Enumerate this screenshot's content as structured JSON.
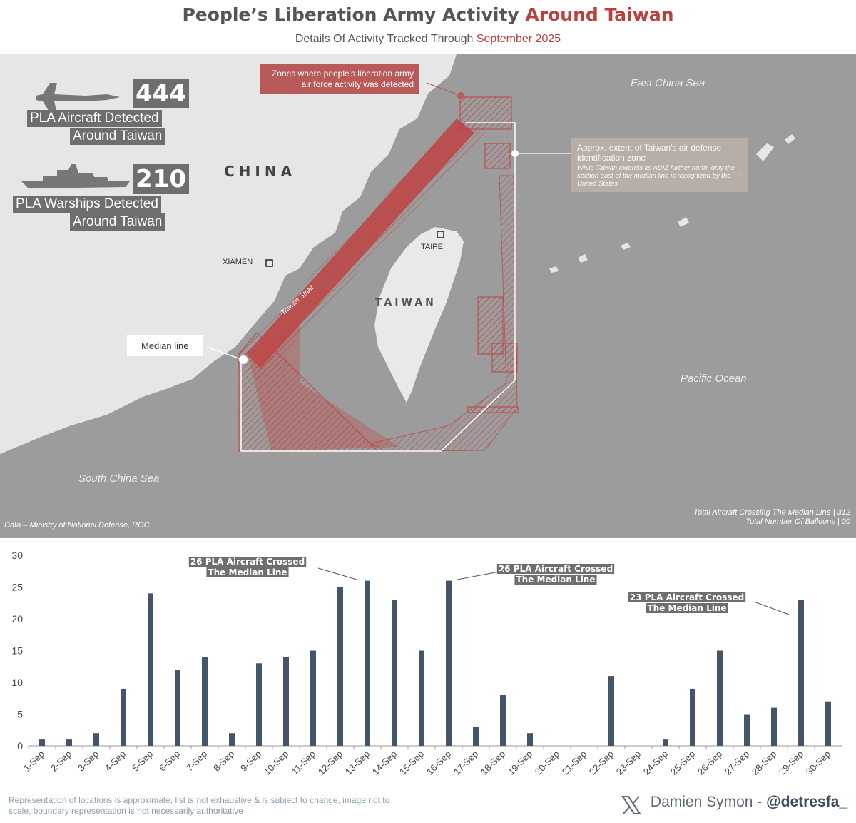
{
  "header": {
    "title_main": "People’s Liberation Army Activity ",
    "title_accent": "Around Taiwan",
    "subtitle_main": "Details Of Activity Tracked Through ",
    "subtitle_accent": "September 2025"
  },
  "map": {
    "stats": {
      "aircraft_count": "444",
      "aircraft_label_1": "PLA Aircraft Detected",
      "aircraft_label_2": "Around Taiwan",
      "warship_count": "210",
      "warship_label_1": "PLA Warships Detected",
      "warship_label_2": "Around Taiwan"
    },
    "labels": {
      "china": "CHINA",
      "taiwan": "TAIWAN",
      "taipei": "TAIPEI",
      "xiamen": "XIAMEN",
      "strait": "Taiwan Strait",
      "east_china_sea": "East China Sea",
      "pacific_ocean": "Pacific Ocean",
      "south_china_sea": "South China Sea"
    },
    "callouts": {
      "zones": "Zones where people's liberation army air force activity was detected",
      "adiz_title": "Approx. extent of Taiwan's air defense identification zone",
      "adiz_note": "While Taiwan extends its ADIZ further north, only the section east of the median line is recognized by the United States",
      "median": "Median line"
    },
    "source": "Data – Ministry of National Defense, ROC",
    "totals_1": "Total Aircraft Crossing The Median Line | 312",
    "totals_2": "Total Number Of Balloons | 00"
  },
  "chart_data": {
    "type": "bar",
    "categories": [
      "1-Sep",
      "2-Sep",
      "3-Sep",
      "4-Sep",
      "5-Sep",
      "6-Sep",
      "7-Sep",
      "8-Sep",
      "9-Sep",
      "10-Sep",
      "11-Sep",
      "12-Sep",
      "13-Sep",
      "14-Sep",
      "15-Sep",
      "16-Sep",
      "17-Sep",
      "18-Sep",
      "19-Sep",
      "20-Sep",
      "21-Sep",
      "22-Sep",
      "23-Sep",
      "24-Sep",
      "25-Sep",
      "26-Sep",
      "27-Sep",
      "28-Sep",
      "29-Sep",
      "30-Sep"
    ],
    "values": [
      1,
      1,
      2,
      9,
      24,
      12,
      14,
      2,
      13,
      14,
      15,
      25,
      26,
      23,
      15,
      26,
      3,
      8,
      2,
      0,
      0,
      11,
      0,
      1,
      9,
      15,
      5,
      6,
      23,
      7
    ],
    "ylim": [
      0,
      30
    ],
    "yticks": [
      0,
      5,
      10,
      15,
      20,
      25,
      30
    ],
    "bar_color": "#44546a",
    "annotations": [
      {
        "index": 12,
        "line1": "26 PLA Aircraft Crossed",
        "line2": "The Median Line"
      },
      {
        "index": 15,
        "line1": "26 PLA Aircraft Crossed",
        "line2": "The Median Line"
      },
      {
        "index": 28,
        "line1": "23 PLA Aircraft Crossed",
        "line2": "The Median Line"
      }
    ]
  },
  "footer": {
    "note": "Representation of locations is approximate, list is not exhaustive & is subject to change, image not to scale, boundary representation is not necessarily authoritative",
    "credit_name": "Damien Symon - ",
    "credit_handle": "@detresfa_"
  },
  "colors": {
    "accent": "#b8403e",
    "zones": "#c23b3b",
    "map_sea": "#9c9c9c",
    "map_land": "#e6e6e6"
  }
}
